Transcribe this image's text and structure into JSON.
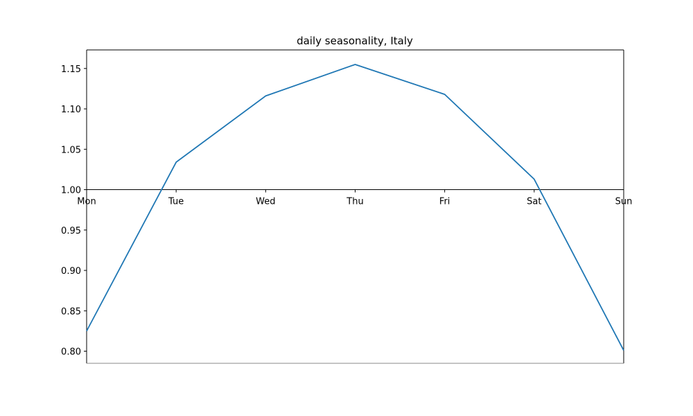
{
  "chart_data": {
    "type": "line",
    "title": "daily seasonality, Italy",
    "xlabel": "",
    "ylabel": "",
    "categories": [
      "Mon",
      "Tue",
      "Wed",
      "Thu",
      "Fri",
      "Sat",
      "Sun"
    ],
    "series": [
      {
        "values": [
          0.825,
          1.034,
          1.116,
          1.155,
          1.118,
          1.013,
          0.801
        ],
        "color": "#1f77b4"
      }
    ],
    "ylim": [
      0.785,
      1.173
    ],
    "yticks": [
      0.8,
      0.85,
      0.9,
      0.95,
      1.0,
      1.05,
      1.1,
      1.15
    ],
    "ytick_labels": [
      "0.80",
      "0.85",
      "0.90",
      "0.95",
      "1.00",
      "1.05",
      "1.10",
      "1.15"
    ],
    "x_axis_at_y": 1.0,
    "grid": false,
    "legend": "none"
  }
}
